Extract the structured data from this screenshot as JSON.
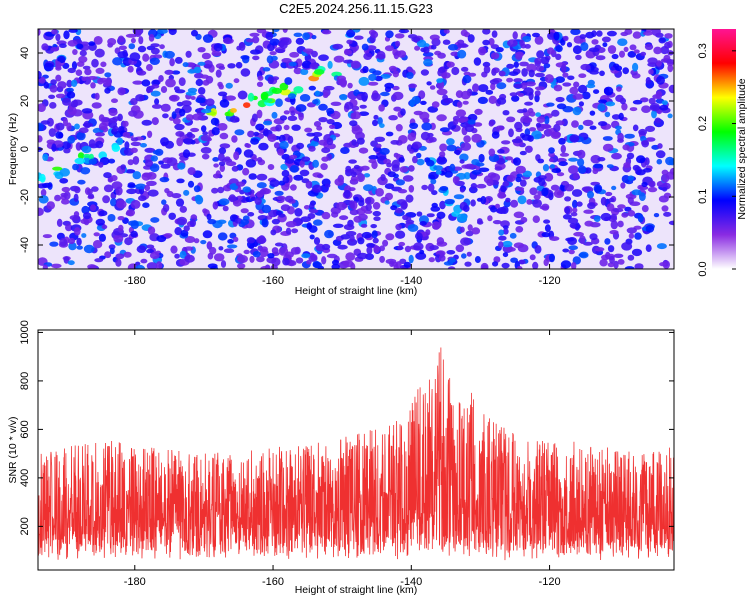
{
  "chart_data": [
    {
      "type": "heatmap",
      "title": "C2E5.2024.256.11.15.G23",
      "xlabel": "Height of straight line (km)",
      "ylabel": "Frequency (Hz)",
      "xlim": [
        -194,
        -102
      ],
      "ylim": [
        -50,
        50
      ],
      "xticks": [
        -180,
        -160,
        -140,
        -120
      ],
      "yticks": [
        -40,
        -20,
        0,
        20,
        40
      ],
      "colorbar": {
        "label": "Normalized spectral amplitude",
        "range": [
          0.0,
          0.33
        ],
        "ticks": [
          0.0,
          0.1,
          0.2,
          0.3
        ],
        "colormap": [
          "#ffffff",
          "#8a2be2",
          "#0000ff",
          "#00ffff",
          "#00ff00",
          "#ffff00",
          "#ff0000",
          "#ff1493"
        ]
      },
      "features": [
        {
          "name": "streak-upper",
          "points": [
            [
              -168,
              15
            ],
            [
              -160,
              22
            ],
            [
              -152,
              32
            ]
          ],
          "peak": 0.3
        },
        {
          "name": "streak-lower-left",
          "points": [
            [
              -193,
              -12
            ],
            [
              -188,
              -3
            ],
            [
              -183,
              0
            ]
          ],
          "peak": 0.2
        },
        {
          "name": "streak-lower-middle",
          "points": [
            [
              -138,
              0
            ],
            [
              -135,
              -20
            ],
            [
              -133,
              -28
            ]
          ],
          "peak": 0.12
        }
      ]
    },
    {
      "type": "line",
      "xlabel": "Height of straight line (km)",
      "ylabel": "SNR (10 * v/v)",
      "xlim": [
        -194,
        -102
      ],
      "ylim": [
        20,
        1010
      ],
      "xticks": [
        -180,
        -160,
        -140,
        -120
      ],
      "yticks": [
        200,
        400,
        600,
        800,
        1000
      ],
      "color": "#ef3030",
      "envelope": {
        "x": [
          -194,
          -185,
          -175,
          -165,
          -155,
          -148,
          -143,
          -140,
          -138,
          -136.5,
          -136,
          -135,
          -133,
          -131,
          -128,
          -124,
          -118,
          -112,
          -106,
          -102
        ],
        "y": [
          500,
          560,
          520,
          510,
          540,
          580,
          620,
          740,
          820,
          880,
          1000,
          860,
          720,
          760,
          640,
          560,
          560,
          540,
          500,
          540
        ]
      }
    }
  ]
}
